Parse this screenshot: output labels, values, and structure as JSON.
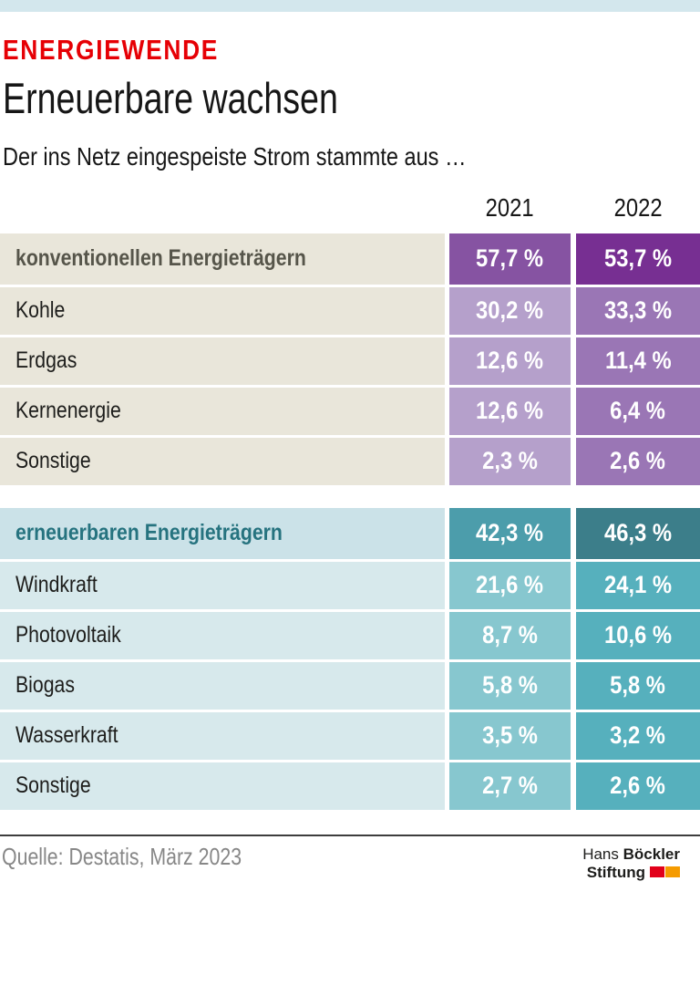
{
  "page": {
    "kicker": "ENERGIEWENDE",
    "title": "Erneuerbare wachsen",
    "subtitle": "Der ins Netz eingespeiste Strom stammte aus …"
  },
  "columns": {
    "col2021": "2021",
    "col2022": "2022"
  },
  "table": {
    "sections": [
      {
        "header": {
          "label": "konventionellen Energieträgern",
          "v2021": "57,7 %",
          "v2022": "53,7 %"
        },
        "rows": [
          {
            "label": "Kohle",
            "v2021": "30,2 %",
            "v2022": "33,3 %"
          },
          {
            "label": "Erdgas",
            "v2021": "12,6 %",
            "v2022": "11,4 %"
          },
          {
            "label": "Kernenergie",
            "v2021": "12,6 %",
            "v2022": "6,4 %"
          },
          {
            "label": "Sonstige",
            "v2021": "2,3 %",
            "v2022": "2,6 %"
          }
        ]
      },
      {
        "header": {
          "label": "erneuerbaren Energieträgern",
          "v2021": "42,3 %",
          "v2022": "46,3 %"
        },
        "rows": [
          {
            "label": "Windkraft",
            "v2021": "21,6 %",
            "v2022": "24,1 %"
          },
          {
            "label": "Photovoltaik",
            "v2021": "8,7 %",
            "v2022": "10,6 %"
          },
          {
            "label": "Biogas",
            "v2021": "5,8 %",
            "v2022": "5,8 %"
          },
          {
            "label": "Wasserkraft",
            "v2021": "3,5 %",
            "v2022": "3,2 %"
          },
          {
            "label": "Sonstige",
            "v2021": "2,7 %",
            "v2022": "2,6 %"
          }
        ]
      }
    ]
  },
  "footer": {
    "source": "Quelle: Destatis, März 2023",
    "logo": {
      "name_regular": "Hans",
      "name_bold": "Böckler",
      "line2_bold": "Stiftung"
    }
  },
  "colors": {
    "topbar": "#d3e7ed",
    "kicker_red": "#e60005",
    "label_bg_conventional": "#e9e6da",
    "label_bg_renewable": "#d7e9ec",
    "purple_header_2021": "#8653a2",
    "purple_header_2022": "#772f92",
    "purple_sub_2021": "#b5a0cb",
    "purple_sub_2022": "#9a76b5",
    "teal_header_2021": "#4c9dab",
    "teal_header_2022": "#3c7e8a",
    "teal_sub_2021": "#87c7cf",
    "teal_sub_2022": "#56b0bd",
    "logo_red": "#e2001a",
    "logo_orange": "#f59b00"
  },
  "chart_data": {
    "type": "table",
    "title": "Erneuerbare wachsen",
    "subtitle": "Der ins Netz eingespeiste Strom stammte aus …",
    "unit": "%",
    "categories": [
      "konventionellen Energieträgern",
      "Kohle",
      "Erdgas",
      "Kernenergie",
      "Sonstige",
      "erneuerbaren Energieträgern",
      "Windkraft",
      "Photovoltaik",
      "Biogas",
      "Wasserkraft",
      "Sonstige"
    ],
    "series": [
      {
        "name": "2021",
        "values": [
          57.7,
          30.2,
          12.6,
          12.6,
          2.3,
          42.3,
          21.6,
          8.7,
          5.8,
          3.5,
          2.7
        ]
      },
      {
        "name": "2022",
        "values": [
          53.7,
          33.3,
          11.4,
          6.4,
          2.6,
          46.3,
          24.1,
          10.6,
          5.8,
          3.2,
          2.6
        ]
      }
    ],
    "source": "Quelle: Destatis, März 2023"
  }
}
